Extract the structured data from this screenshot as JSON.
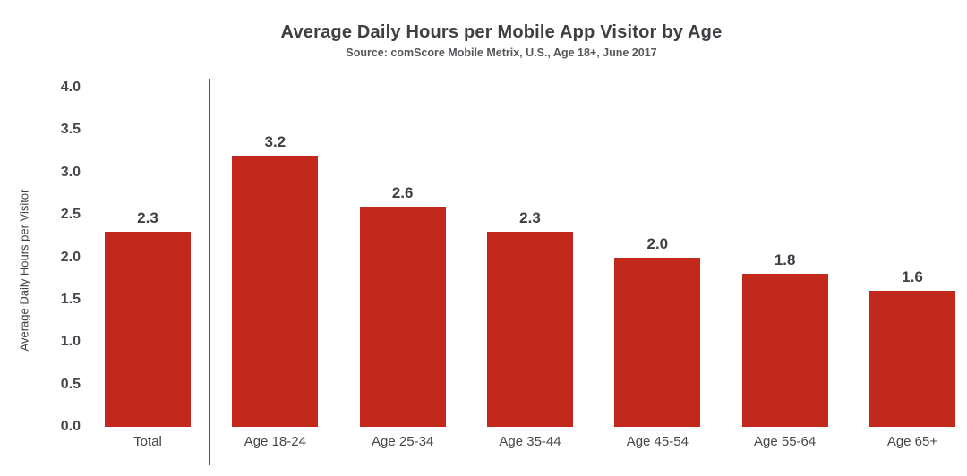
{
  "chart_data": {
    "type": "bar",
    "title": "Average Daily Hours per Mobile App Visitor by Age",
    "source": "Source: comScore Mobile Metrix, U.S., Age 18+, June 2017",
    "categories": [
      "Total",
      "Age 18-24",
      "Age 25-34",
      "Age 35-44",
      "Age 45-54",
      "Age 55-64",
      "Age 65+"
    ],
    "values": [
      2.3,
      3.2,
      2.6,
      2.3,
      2.0,
      1.8,
      1.6
    ],
    "value_labels": [
      "2.3",
      "3.2",
      "2.6",
      "2.3",
      "2.0",
      "1.8",
      "1.6"
    ],
    "xlabel": "",
    "ylabel": "Average Daily Hours per Visitor",
    "ylim": [
      0,
      4.0
    ],
    "yticks": [
      "4.0",
      "3.5",
      "3.0",
      "2.5",
      "2.0",
      "1.5",
      "1.0",
      "0.5",
      "0.0"
    ],
    "grid": false,
    "legend": "none",
    "separator_after_first_bar": true,
    "colors": {
      "bar": "#c2281c",
      "separator_line": "#54565e",
      "title_text": "#3e3f43",
      "tick_text": "#45464b"
    }
  }
}
